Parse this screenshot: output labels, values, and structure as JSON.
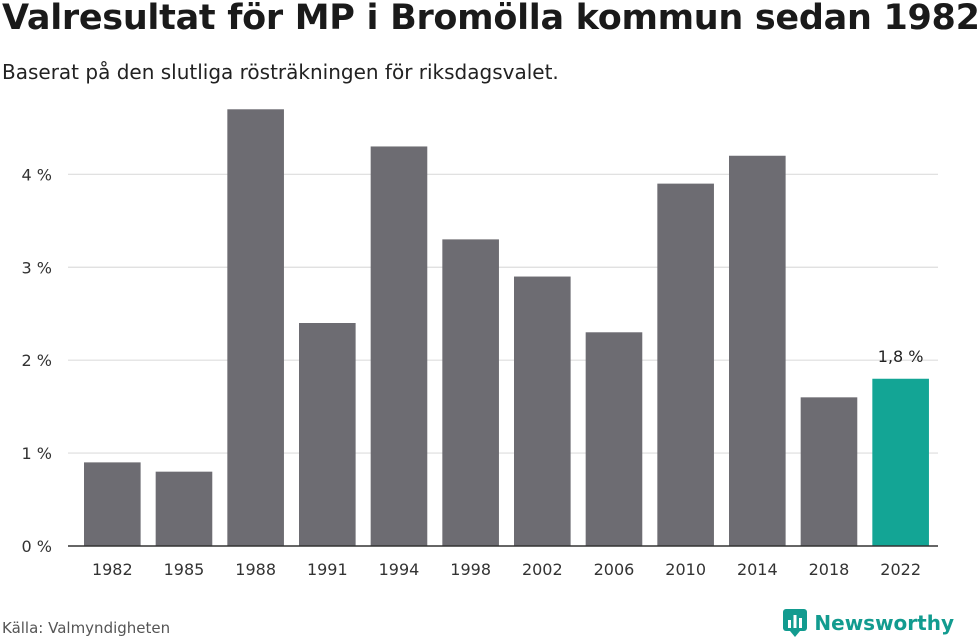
{
  "title": "Valresultat för MP i Bromölla kommun sedan 1982",
  "subtitle": "Baserat på den slutliga rösträkningen för riksdagsvalet.",
  "source": "Källa: Valmyndigheten",
  "brand": {
    "name": "Newsworthy",
    "icon": "newsworthy-logo-icon"
  },
  "colors": {
    "bar": "#6d6c72",
    "highlight": "#13a595",
    "grid": "#dddddd",
    "axis": "#333333",
    "brand": "#129b8f"
  },
  "chart_data": {
    "type": "bar",
    "title": "Valresultat för MP i Bromölla kommun sedan 1982",
    "subtitle": "Baserat på den slutliga rösträkningen för riksdagsvalet.",
    "categories": [
      "1982",
      "1985",
      "1988",
      "1991",
      "1994",
      "1998",
      "2002",
      "2006",
      "2010",
      "2014",
      "2018",
      "2022"
    ],
    "values": [
      0.9,
      0.8,
      4.7,
      2.4,
      4.3,
      3.3,
      2.9,
      2.3,
      3.9,
      4.2,
      1.6,
      1.8
    ],
    "unit": "%",
    "ylim": [
      0,
      4.8
    ],
    "yticks": [
      0,
      1,
      2,
      3,
      4
    ],
    "ytick_labels": [
      "0 %",
      "1 %",
      "2 %",
      "3 %",
      "4 %"
    ],
    "highlight_index": 11,
    "highlight_label": "1,8 %",
    "grid": true,
    "legend": "none"
  }
}
